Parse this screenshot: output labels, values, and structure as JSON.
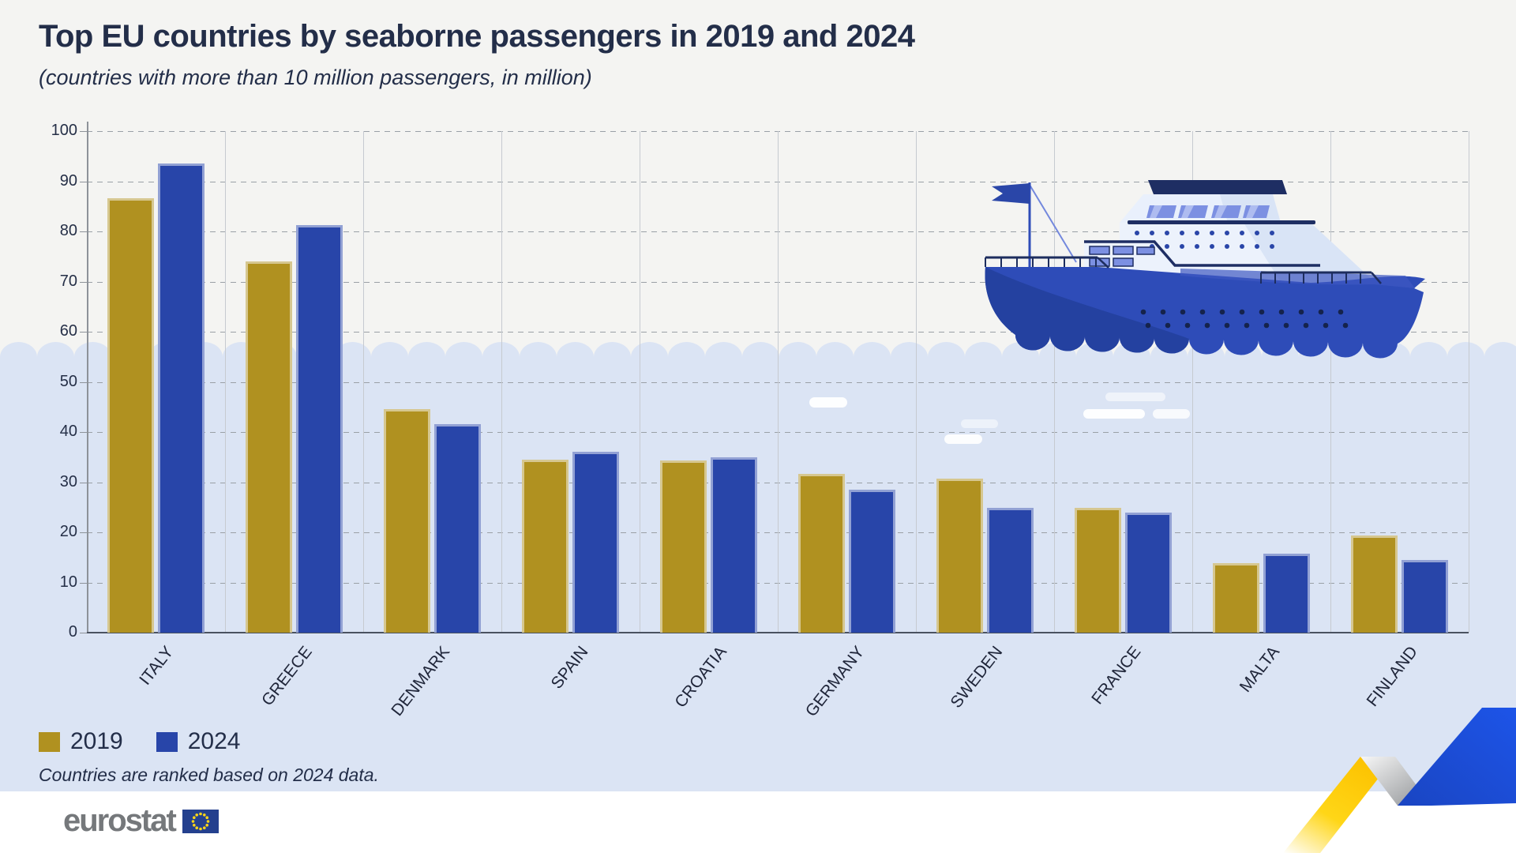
{
  "title": "Top EU countries by seaborne passengers in 2019 and 2024",
  "subtitle": "(countries with more than 10 million passengers, in million)",
  "note": "Countries are ranked based on 2024 data.",
  "legend": [
    {
      "label": "2019",
      "color": "#b09120"
    },
    {
      "label": "2024",
      "color": "#2845a9"
    }
  ],
  "footer": {
    "brand": "eurostat"
  },
  "colors": {
    "background_top": "#f4f4f2",
    "background_water": "#dbe4f4",
    "bar_2019": "#b09120",
    "bar_2024": "#2845a9",
    "text_navy": "#232e49",
    "ribbon_yellow": "#ffd617",
    "ribbon_blue": "#1d50d8"
  },
  "chart_data": {
    "type": "bar",
    "title": "Top EU countries by seaborne passengers in 2019 and 2024",
    "subtitle": "(countries with more than 10 million passengers, in million)",
    "categories": [
      "ITALY",
      "GREECE",
      "DENMARK",
      "SPAIN",
      "CROATIA",
      "GERMANY",
      "SWEDEN",
      "FRANCE",
      "MALTA",
      "FINLAND"
    ],
    "series": [
      {
        "name": "2019",
        "color": "#b09120",
        "values": [
          86.6,
          74.0,
          44.5,
          34.5,
          34.3,
          31.6,
          30.7,
          24.9,
          13.8,
          19.3
        ]
      },
      {
        "name": "2024",
        "color": "#2845a9",
        "values": [
          93.6,
          81.2,
          41.5,
          36.0,
          34.9,
          28.5,
          24.9,
          24.0,
          15.7,
          14.5
        ]
      }
    ],
    "xlabel": "",
    "ylabel": "",
    "ylim": [
      0,
      100
    ],
    "ystep": 10,
    "grid": "horizontal-dashed",
    "legend_position": "bottom-left",
    "note": "Countries are ranked based on 2024 data."
  }
}
